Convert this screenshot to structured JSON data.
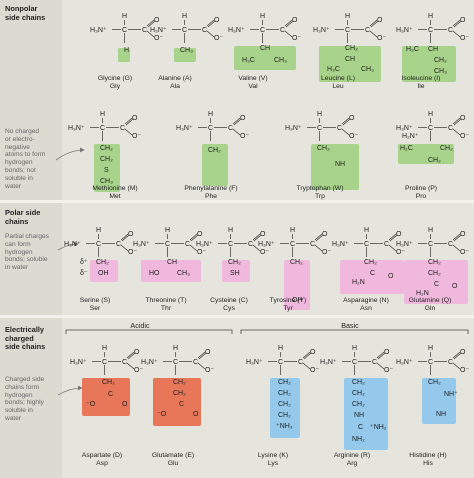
{
  "groups": {
    "nonpolar": {
      "header": "Nonpolar\nside chains",
      "desc": "No charged\nor electro-\nnegative\natoms to form\nhydrogen\nbonds; not\nsoluble in\nwater"
    },
    "polar": {
      "header": "Polar side\nchains",
      "desc": "Partial charges\ncan form\nhydrogen\nbonds; soluble\nin water"
    },
    "charged": {
      "header": "Electrically\ncharged\nside chains",
      "desc": "Charged side\nchains form\nhydrogen\nbonds; highly\nsoluble in\nwater",
      "acidic": "Acidic",
      "basic": "Basic"
    }
  },
  "colors": {
    "nonpolar": "#a8d38a",
    "polar": "#f0b8dc",
    "acidic": "#e8775a",
    "basic": "#94c9ec"
  },
  "backbone": {
    "h3n": "H₃N⁺",
    "h": "H",
    "c": "C",
    "o": "O",
    "o_minus": "O⁻"
  },
  "amino_acids": [
    {
      "key": "gly",
      "name": "Glycine (G)",
      "abbr": "Gly"
    },
    {
      "key": "ala",
      "name": "Alanine (A)",
      "abbr": "Ala"
    },
    {
      "key": "val",
      "name": "Valine (V)",
      "abbr": "Val"
    },
    {
      "key": "leu",
      "name": "Leucine (L)",
      "abbr": "Leu"
    },
    {
      "key": "ile",
      "name": "Isoleucine (I)",
      "abbr": "Ile"
    },
    {
      "key": "met",
      "name": "Methionine (M)",
      "abbr": "Met"
    },
    {
      "key": "phe",
      "name": "Phenylalanine (F)",
      "abbr": "Phe"
    },
    {
      "key": "trp",
      "name": "Tryptophan (W)",
      "abbr": "Trp"
    },
    {
      "key": "pro",
      "name": "Proline (P)",
      "abbr": "Pro"
    },
    {
      "key": "ser",
      "name": "Serine (S)",
      "abbr": "Ser"
    },
    {
      "key": "thr",
      "name": "Threonine (T)",
      "abbr": "Thr"
    },
    {
      "key": "cys",
      "name": "Cysteine (C)",
      "abbr": "Cys"
    },
    {
      "key": "tyr",
      "name": "Tyrosine (Y)",
      "abbr": "Tyr"
    },
    {
      "key": "asn",
      "name": "Asparagine (N)",
      "abbr": "Asn"
    },
    {
      "key": "gln",
      "name": "Glutamine (Q)",
      "abbr": "Gln"
    },
    {
      "key": "asp",
      "name": "Aspartate (D)",
      "abbr": "Asp"
    },
    {
      "key": "glu",
      "name": "Glutamate (E)",
      "abbr": "Glu"
    },
    {
      "key": "lys",
      "name": "Lysine (K)",
      "abbr": "Lys"
    },
    {
      "key": "arg",
      "name": "Arginine (R)",
      "abbr": "Arg"
    },
    {
      "key": "his",
      "name": "Histidine (H)",
      "abbr": "His"
    }
  ],
  "side_chain_text": {
    "gly": [
      "H"
    ],
    "ala": [
      "CH₃"
    ],
    "val": [
      "CH",
      "H₃C",
      "CH₃"
    ],
    "leu": [
      "CH₂",
      "CH",
      "H₃C",
      "CH₃"
    ],
    "ile": [
      "H₃C",
      "CH",
      "CH₂",
      "CH₃"
    ],
    "met": [
      "CH₂",
      "CH₂",
      "S",
      "CH₃"
    ],
    "phe": [
      "CH₂"
    ],
    "trp": [
      "CH₂",
      "NH"
    ],
    "pro": [
      "H₂C",
      "CH₂",
      "CH₂",
      "H₂N⁺"
    ],
    "ser": [
      "CH₂",
      "OH",
      "δ⁺",
      "δ⁻"
    ],
    "thr": [
      "CH",
      "HO",
      "CH₃"
    ],
    "cys": [
      "CH₂",
      "SH"
    ],
    "tyr": [
      "CH₂",
      "OH"
    ],
    "asn": [
      "CH₂",
      "C",
      "O",
      "H₂N"
    ],
    "gln": [
      "CH₂",
      "CH₂",
      "C",
      "O",
      "H₂N"
    ],
    "asp": [
      "CH₂",
      "C",
      "O",
      "⁻O"
    ],
    "glu": [
      "CH₂",
      "CH₂",
      "C",
      "O",
      "⁻O"
    ],
    "lys": [
      "CH₂",
      "CH₂",
      "CH₂",
      "CH₂",
      "⁺NH₃"
    ],
    "arg": [
      "CH₂",
      "CH₂",
      "CH₂",
      "NH",
      "C",
      "⁺NH₂",
      "NH₂"
    ],
    "his": [
      "CH₂",
      "NH⁺",
      "NH"
    ]
  }
}
